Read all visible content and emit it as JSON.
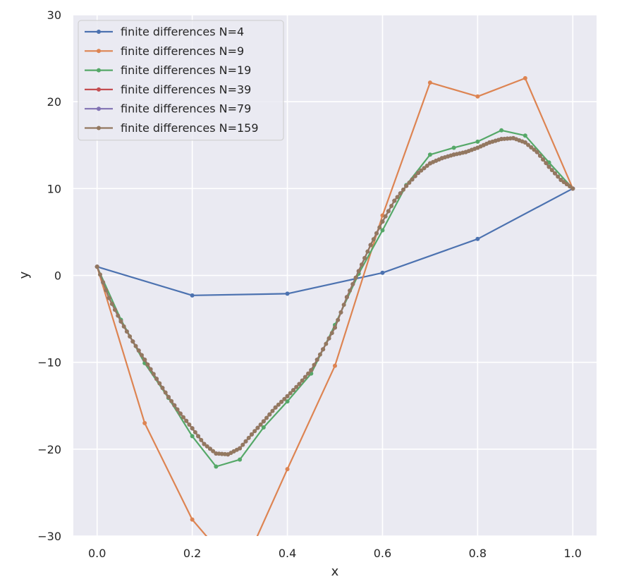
{
  "chart_data": {
    "type": "line",
    "xlabel": "x",
    "ylabel": "y",
    "xlim": [
      -0.05,
      1.05
    ],
    "ylim": [
      -30,
      30
    ],
    "xticks": [
      "0.0",
      "0.2",
      "0.4",
      "0.6",
      "0.8",
      "1.0"
    ],
    "yticks": [
      "30",
      "20",
      "10",
      "0",
      "−10",
      "−20",
      "−30"
    ],
    "grid": true,
    "legend_position": "top-left",
    "series": [
      {
        "name": "finite differences N=4",
        "color": "#4c72b0",
        "x": [
          0,
          0.2,
          0.4,
          0.6,
          0.8,
          1.0
        ],
        "y": [
          1,
          -2.3,
          -2.1,
          0.3,
          4.2,
          10
        ]
      },
      {
        "name": "finite differences N=9",
        "color": "#dd8452",
        "x": [
          0,
          0.1,
          0.2,
          0.3,
          0.4,
          0.5,
          0.6,
          0.7,
          0.8,
          0.9,
          1.0
        ],
        "y": [
          1,
          -17,
          -28.1,
          -34.5,
          -22.3,
          -10.4,
          6.9,
          22.2,
          20.6,
          22.7,
          10
        ]
      },
      {
        "name": "finite differences N=19",
        "color": "#55a868",
        "x": [
          0,
          0.05,
          0.1,
          0.15,
          0.2,
          0.25,
          0.3,
          0.35,
          0.4,
          0.45,
          0.5,
          0.55,
          0.6,
          0.65,
          0.7,
          0.75,
          0.8,
          0.85,
          0.9,
          0.95,
          1.0
        ],
        "y": [
          1,
          -5.1,
          -10.1,
          -14.1,
          -18.5,
          -22,
          -21.2,
          -17.5,
          -14.5,
          -11.3,
          -5.7,
          0.2,
          5.2,
          10.4,
          13.9,
          14.7,
          15.4,
          16.7,
          16.1,
          13.0,
          10
        ]
      },
      {
        "name": "finite differences N=39",
        "color": "#c44e52",
        "source": "curve"
      },
      {
        "name": "finite differences N=79",
        "color": "#8172b3",
        "source": "curve"
      },
      {
        "name": "finite differences N=159",
        "color": "#937860",
        "source": "curve"
      }
    ],
    "curve_anchor": {
      "x": [
        0,
        0.025,
        0.05,
        0.075,
        0.1,
        0.125,
        0.15,
        0.175,
        0.2,
        0.225,
        0.25,
        0.275,
        0.3,
        0.325,
        0.35,
        0.375,
        0.4,
        0.425,
        0.45,
        0.475,
        0.5,
        0.525,
        0.55,
        0.575,
        0.6,
        0.625,
        0.65,
        0.675,
        0.7,
        0.725,
        0.75,
        0.775,
        0.8,
        0.825,
        0.85,
        0.875,
        0.9,
        0.925,
        0.95,
        0.975,
        1.0
      ],
      "y": [
        1,
        -2.6,
        -5.3,
        -7.6,
        -9.7,
        -11.9,
        -14.0,
        -15.9,
        -17.6,
        -19.4,
        -20.5,
        -20.6,
        -19.9,
        -18.3,
        -16.8,
        -15.2,
        -13.9,
        -12.5,
        -10.9,
        -8.5,
        -6.0,
        -2.5,
        0.5,
        3.5,
        6.2,
        8.6,
        10.3,
        11.8,
        12.9,
        13.5,
        13.9,
        14.2,
        14.7,
        15.3,
        15.7,
        15.8,
        15.3,
        14.2,
        12.5,
        11.0,
        10.0
      ]
    }
  }
}
